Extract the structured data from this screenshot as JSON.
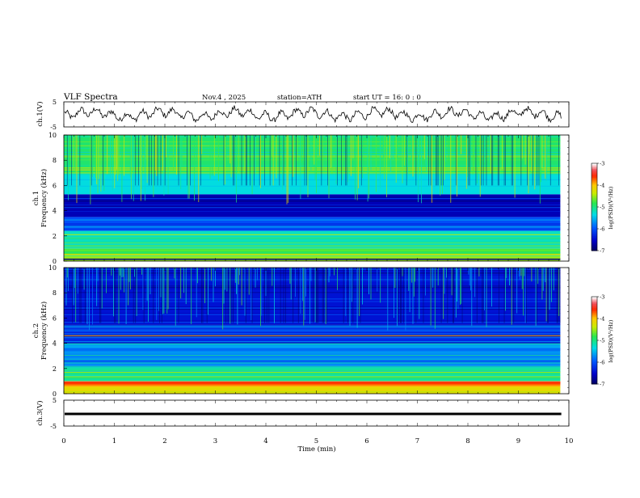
{
  "header": {
    "title": "VLF  Spectra",
    "date": "Nov.4  , 2025",
    "station": "station=ATH",
    "start": "start  UT  =   16: 0   : 0"
  },
  "chart_data": [
    {
      "type": "line",
      "name": "ch1-waveform",
      "ylabel": "ch.1(V)",
      "ylim": [
        -5,
        5
      ],
      "yticks": [
        "5",
        "-5"
      ],
      "xlim": [
        0,
        10
      ]
    },
    {
      "type": "heatmap",
      "name": "ch1-spectrogram",
      "ylabel": "ch.1\nFrequency  (kHz)",
      "ylabel_lines": [
        "ch.1",
        "Frequency  (kHz)"
      ],
      "ylim": [
        0,
        10
      ],
      "yticks": [
        "10",
        "8",
        "6",
        "4",
        "2",
        "0"
      ],
      "xlim": [
        0,
        10
      ],
      "data_end_min": 9.83,
      "colorbar": {
        "label": "log(PSD)(V²/Hz)",
        "range": [
          -7,
          -3
        ],
        "ticks": [
          "-3",
          "-4",
          "-5",
          "-6",
          "-7"
        ]
      },
      "bands_khz": [
        {
          "from": 0.0,
          "to": 0.4,
          "level": -4.5
        },
        {
          "from": 0.4,
          "to": 1.0,
          "level": -4.8
        },
        {
          "from": 1.0,
          "to": 2.4,
          "level": -5.2
        },
        {
          "from": 2.4,
          "to": 3.5,
          "level": -6.0
        },
        {
          "from": 3.5,
          "to": 5.3,
          "level": -6.6
        },
        {
          "from": 5.3,
          "to": 7.0,
          "level": -5.3
        },
        {
          "from": 7.0,
          "to": 10.0,
          "level": -4.9
        }
      ]
    },
    {
      "type": "heatmap",
      "name": "ch2-spectrogram",
      "ylabel": "ch.2\nFrequency  (kHz)",
      "ylabel_lines": [
        "ch.2",
        "Frequency  (kHz)"
      ],
      "ylim": [
        0,
        10
      ],
      "yticks": [
        "10",
        "8",
        "6",
        "4",
        "2",
        "0"
      ],
      "xlim": [
        0,
        10
      ],
      "data_end_min": 9.83,
      "colorbar": {
        "label": "log(PSD)(V²/Hz)",
        "range": [
          -7,
          -3
        ],
        "ticks": [
          "-3",
          "-4",
          "-5",
          "-6",
          "-7"
        ]
      },
      "bands_khz": [
        {
          "from": 0.0,
          "to": 0.6,
          "level": -4.2
        },
        {
          "from": 0.6,
          "to": 1.0,
          "level": -3.8
        },
        {
          "from": 1.0,
          "to": 2.2,
          "level": -5.0
        },
        {
          "from": 2.2,
          "to": 4.0,
          "level": -5.7
        },
        {
          "from": 4.0,
          "to": 5.5,
          "level": -6.2
        },
        {
          "from": 5.5,
          "to": 10.0,
          "level": -6.4
        }
      ]
    },
    {
      "type": "line",
      "name": "ch3-waveform",
      "ylabel": "ch.3(V)",
      "ylim": [
        -5,
        5
      ],
      "yticks": [
        "5",
        "-5"
      ],
      "xlim": [
        0,
        10
      ],
      "constant_value": -0.3
    }
  ],
  "x_axis": {
    "label": "Time  (min)",
    "ticks": [
      "0",
      "1",
      "2",
      "3",
      "4",
      "5",
      "6",
      "7",
      "8",
      "9",
      "10"
    ]
  }
}
